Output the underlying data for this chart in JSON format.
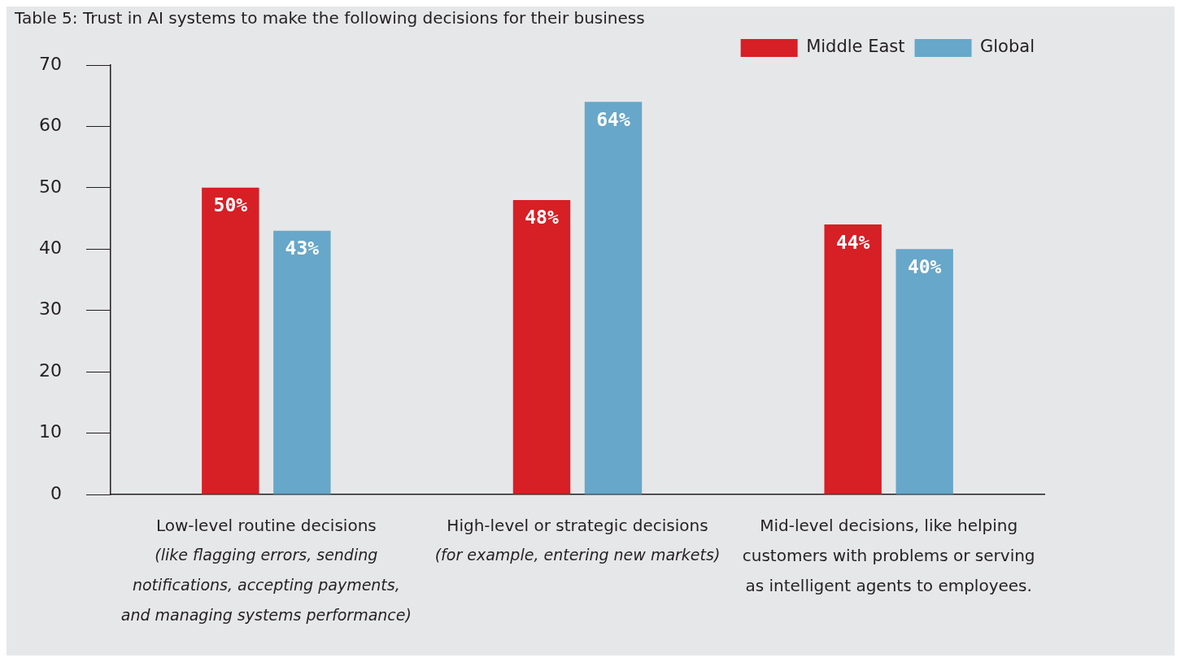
{
  "chart_data": {
    "type": "bar",
    "title": "Table 5: Trust in AI systems to make the following decisions for their business",
    "categories": [
      "Low-level routine decisions (like flagging errors, sending notifications, accepting payments, and managing systems performance)",
      "High-level or strategic decisions (for example, entering new markets)",
      "Mid-level decisions, like helping customers with problems or serving as intelligent agents to employees."
    ],
    "series": [
      {
        "name": "Middle East",
        "color": "#d71f26",
        "values": [
          50,
          48,
          44
        ],
        "value_labels": [
          "50%",
          "48%",
          "44%"
        ]
      },
      {
        "name": "Global",
        "color": "#67a7c9",
        "values": [
          43,
          64,
          40
        ],
        "value_labels": [
          "43%",
          "64%",
          "40%"
        ]
      }
    ],
    "ylim": [
      0,
      70
    ],
    "yticks": [
      0,
      10,
      20,
      30,
      40,
      50,
      60,
      70
    ],
    "grid": false,
    "legend": "top right"
  }
}
